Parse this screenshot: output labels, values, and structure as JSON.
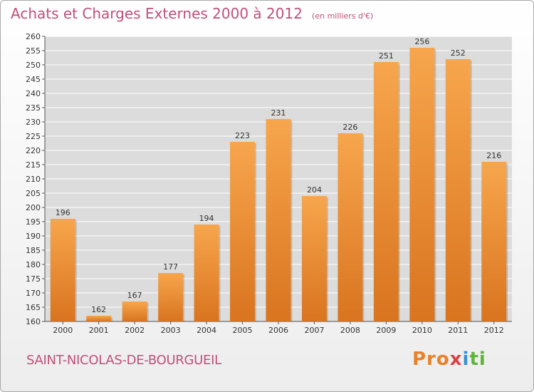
{
  "title": "Achats et Charges Externes 2000 à 2012",
  "unit": "(en milliers d'€)",
  "commune": "SAINT-NICOLAS-DE-BOURGUEIL",
  "logo": {
    "p1": "Pro",
    "p2": "x",
    "p3": "i",
    "p4": "ti"
  },
  "colors": {
    "bar_top": "#f7a64d",
    "bar_bottom": "#d9741f",
    "title": "#c0507a"
  },
  "chart_data": {
    "type": "bar",
    "title": "Achats et Charges Externes 2000 à 2012",
    "unit": "(en milliers d'€)",
    "categories": [
      "2000",
      "2001",
      "2002",
      "2003",
      "2004",
      "2005",
      "2006",
      "2007",
      "2008",
      "2009",
      "2010",
      "2011",
      "2012"
    ],
    "values": [
      196,
      162,
      167,
      177,
      194,
      223,
      231,
      204,
      226,
      251,
      256,
      252,
      216
    ],
    "ylim": [
      160,
      260
    ],
    "ytick_step": 5,
    "grid": true
  }
}
